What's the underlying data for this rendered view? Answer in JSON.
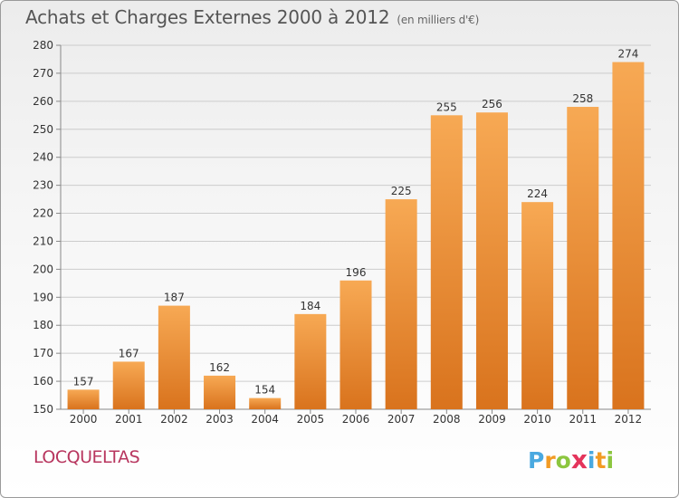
{
  "title": "Achats et Charges Externes 2000 à 2012",
  "unit_label": "(en milliers d'€)",
  "place": "LOCQUELTAS",
  "logo": {
    "letters": [
      "P",
      "r",
      "o",
      "x",
      "i",
      "t",
      "i"
    ],
    "colors": [
      "#4aa9e0",
      "#f29b24",
      "#8cc63f",
      "#e4345b",
      "#4aa9e0",
      "#f29b24",
      "#8cc63f"
    ]
  },
  "colors": {
    "bar_top": "#f7a954",
    "bar_bottom": "#d9731d",
    "axis": "#888888",
    "grid": "#cccccc",
    "text": "#333333",
    "place": "#b8365f"
  },
  "chart_data": {
    "type": "bar",
    "title": "Achats et Charges Externes 2000 à 2012",
    "categories": [
      "2000",
      "2001",
      "2002",
      "2003",
      "2004",
      "2005",
      "2006",
      "2007",
      "2008",
      "2009",
      "2010",
      "2011",
      "2012"
    ],
    "values": [
      157,
      167,
      187,
      162,
      154,
      184,
      196,
      225,
      255,
      256,
      224,
      258,
      274
    ],
    "ylim": [
      150,
      280
    ],
    "yticks": [
      150,
      160,
      170,
      180,
      190,
      200,
      210,
      220,
      230,
      240,
      250,
      260,
      270,
      280
    ],
    "grid": true,
    "data_labels": true
  }
}
